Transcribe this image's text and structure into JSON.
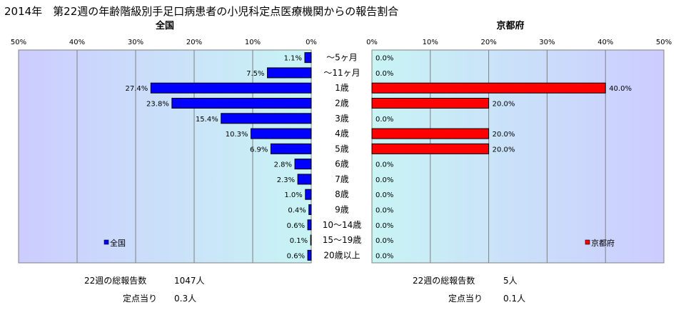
{
  "title": "2014年　第22週の年齢階級別手足口病患者の小児科定点医療機関からの報告割合",
  "age_groups": [
    "～5ヶ月",
    "～11ヶ月",
    "1歳",
    "2歳",
    "3歳",
    "4歳",
    "5歳",
    "6歳",
    "7歳",
    "8歳",
    "9歳",
    "10～14歳",
    "15～19歳",
    "20歳以上"
  ],
  "chart_data": [
    {
      "type": "bar",
      "orientation": "horizontal",
      "title": "全国",
      "legend": {
        "label": "全国",
        "placement": "bottom-left"
      },
      "x_axis": {
        "reversed": true,
        "range": [
          0,
          50
        ],
        "ticks": [
          50,
          40,
          30,
          20,
          10,
          0
        ],
        "tick_labels": [
          "50%",
          "40%",
          "30%",
          "20%",
          "10%",
          "0%"
        ],
        "position": "top"
      },
      "grid": true,
      "categories": [
        "～5ヶ月",
        "～11ヶ月",
        "1歳",
        "2歳",
        "3歳",
        "4歳",
        "5歳",
        "6歳",
        "7歳",
        "8歳",
        "9歳",
        "10～14歳",
        "15～19歳",
        "20歳以上"
      ],
      "values": [
        1.1,
        7.5,
        27.4,
        23.8,
        15.4,
        10.3,
        6.9,
        2.8,
        2.3,
        1.0,
        0.4,
        0.6,
        0.1,
        0.6
      ],
      "data_labels": [
        "1.1%",
        "7.5%",
        "27.4%",
        "23.8%",
        "15.4%",
        "10.3%",
        "6.9%",
        "2.8%",
        "2.3%",
        "1.0%",
        "0.4%",
        "0.6%",
        "0.1%",
        "0.6%"
      ],
      "bar_color": "#0000ff",
      "plot_bg": "#ccccff"
    },
    {
      "type": "bar",
      "orientation": "horizontal",
      "title": "京都府",
      "legend": {
        "label": "京都府",
        "placement": "bottom-right"
      },
      "x_axis": {
        "reversed": false,
        "range": [
          0,
          50
        ],
        "ticks": [
          0,
          10,
          20,
          30,
          40,
          50
        ],
        "tick_labels": [
          "0%",
          "10%",
          "20%",
          "30%",
          "40%",
          "50%"
        ],
        "position": "top"
      },
      "grid": true,
      "categories": [
        "～5ヶ月",
        "～11ヶ月",
        "1歳",
        "2歳",
        "3歳",
        "4歳",
        "5歳",
        "6歳",
        "7歳",
        "8歳",
        "9歳",
        "10～14歳",
        "15～19歳",
        "20歳以上"
      ],
      "values": [
        0.0,
        0.0,
        40.0,
        20.0,
        0.0,
        20.0,
        20.0,
        0.0,
        0.0,
        0.0,
        0.0,
        0.0,
        0.0,
        0.0
      ],
      "data_labels": [
        "0.0%",
        "0.0%",
        "40.0%",
        "20.0%",
        "0.0%",
        "20.0%",
        "20.0%",
        "0.0%",
        "0.0%",
        "0.0%",
        "0.0%",
        "0.0%",
        "0.0%",
        "0.0%"
      ],
      "bar_color": "#ff0000",
      "plot_bg": "#ccccff"
    }
  ],
  "summary": {
    "national": {
      "total_label": "22週の総報告数",
      "total_value": "1047人",
      "per_site_label": "定点当り",
      "per_site_value": "0.3人"
    },
    "kyoto": {
      "total_label": "22週の総報告数",
      "total_value": "5人",
      "per_site_label": "定点当り",
      "per_site_value": "0.1人"
    }
  }
}
